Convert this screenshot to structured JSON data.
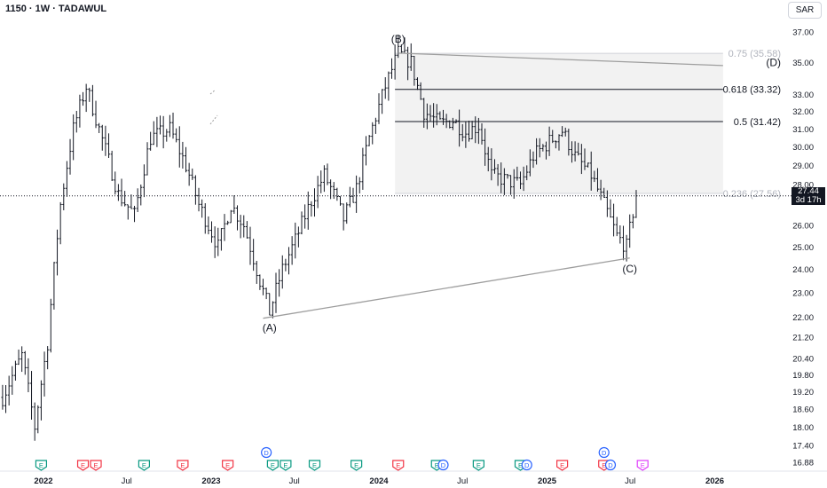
{
  "header": {
    "symbol": "1150 · 1W · TADAWUL",
    "currency": "SAR"
  },
  "last_price": {
    "value": "27.44",
    "countdown": "3d 17h"
  },
  "colors": {
    "bar": "#131722",
    "trendline": "#9e9e9e",
    "fib_line": "#131722",
    "fib_faint": "#b2b5be",
    "fib_zone": "#f2f2f2",
    "earnings": "#089981",
    "earnings_alt": "#f23645",
    "dividend": "#2962ff",
    "split": "#e040fb"
  },
  "chart_data": {
    "type": "ohlc",
    "title": "",
    "timeframe": "1W",
    "exchange": "TADAWUL",
    "y_ticks": [
      16.88,
      17.4,
      18.0,
      18.6,
      19.2,
      19.8,
      20.4,
      21.2,
      22.0,
      23.0,
      24.0,
      25.0,
      26.0,
      28.0,
      29.0,
      30.0,
      31.0,
      32.0,
      33.0,
      35.0,
      37.0
    ],
    "ylim": [
      16.88,
      37.0
    ],
    "y_scale": "log",
    "x_ticks": [
      {
        "label": "2022",
        "date": "2022-01-01"
      },
      {
        "label": "Jul",
        "date": "2022-07-01"
      },
      {
        "label": "2023",
        "date": "2023-01-01"
      },
      {
        "label": "Jul",
        "date": "2023-07-01"
      },
      {
        "label": "2024",
        "date": "2024-01-01"
      },
      {
        "label": "Jul",
        "date": "2024-07-01"
      },
      {
        "label": "2025",
        "date": "2025-01-01"
      },
      {
        "label": "Jul",
        "date": "2025-07-01"
      },
      {
        "label": "2026",
        "date": "2026-01-01"
      }
    ],
    "price_path": [
      [
        "2021-10-04",
        19.0
      ],
      [
        "2021-11-15",
        20.5
      ],
      [
        "2021-12-13",
        18.0
      ],
      [
        "2022-01-10",
        21.0
      ],
      [
        "2022-02-07",
        27.0
      ],
      [
        "2022-03-07",
        31.0
      ],
      [
        "2022-04-04",
        33.5
      ],
      [
        "2022-05-02",
        31.0
      ],
      [
        "2022-06-13",
        27.5
      ],
      [
        "2022-07-18",
        26.5
      ],
      [
        "2022-08-22",
        30.5
      ],
      [
        "2022-10-03",
        31.0
      ],
      [
        "2022-11-07",
        29.0
      ],
      [
        "2022-12-05",
        27.0
      ],
      [
        "2023-01-16",
        25.0
      ],
      [
        "2023-02-13",
        27.0
      ],
      [
        "2023-03-13",
        26.0
      ],
      [
        "2023-04-17",
        23.5
      ],
      [
        "2023-05-08",
        22.2
      ],
      [
        "2023-06-05",
        24.0
      ],
      [
        "2023-07-03",
        25.3
      ],
      [
        "2023-08-07",
        27.2
      ],
      [
        "2023-09-04",
        28.5
      ],
      [
        "2023-09-25",
        27.5
      ],
      [
        "2023-10-16",
        26.3
      ],
      [
        "2023-11-13",
        27.8
      ],
      [
        "2023-12-11",
        30.5
      ],
      [
        "2024-01-15",
        33.5
      ],
      [
        "2024-02-12",
        35.6
      ],
      [
        "2024-03-11",
        35.0
      ],
      [
        "2024-04-08",
        32.0
      ],
      [
        "2024-05-13",
        31.3
      ],
      [
        "2024-06-10",
        31.5
      ],
      [
        "2024-07-08",
        30.8
      ],
      [
        "2024-08-05",
        31.2
      ],
      [
        "2024-09-02",
        28.5
      ],
      [
        "2024-10-07",
        28.2
      ],
      [
        "2024-11-04",
        28.0
      ],
      [
        "2024-12-02",
        29.5
      ],
      [
        "2025-01-06",
        30.3
      ],
      [
        "2025-02-03",
        30.9
      ],
      [
        "2025-03-03",
        29.5
      ],
      [
        "2025-04-07",
        28.5
      ],
      [
        "2025-05-05",
        27.0
      ],
      [
        "2025-06-02",
        25.5
      ],
      [
        "2025-06-23",
        25.0
      ],
      [
        "2025-07-14",
        27.44
      ]
    ],
    "wave_labels": [
      {
        "text": "(A)",
        "date": "2023-05-08",
        "price": 22.0,
        "pos": "below"
      },
      {
        "text": "(B)",
        "date": "2024-02-12",
        "price": 35.6,
        "pos": "above"
      },
      {
        "text": "(C)",
        "date": "2025-06-30",
        "price": 24.5,
        "pos": "below"
      },
      {
        "text": "(D)",
        "date": "2025-12-29",
        "price": 35.0,
        "pos": "right"
      }
    ],
    "trendlines": [
      {
        "from": {
          "date": "2023-04-24",
          "price": 21.95
        },
        "to": {
          "date": "2025-06-30",
          "price": 24.5
        }
      },
      {
        "from": {
          "date": "2024-02-12",
          "price": 35.6
        },
        "to": {
          "date": "2026-01-19",
          "price": 34.8
        }
      }
    ],
    "fib_levels": [
      {
        "label": "0.75 (35.58)",
        "price": 35.58,
        "faint": true
      },
      {
        "label": "0.618 (33.32)",
        "price": 33.32,
        "faint": false
      },
      {
        "label": "0.5 (31.42)",
        "price": 31.42,
        "faint": false
      },
      {
        "label": "0.236 (27.56)",
        "price": 27.56,
        "faint": true
      }
    ],
    "fib_start_date": "2024-02-05",
    "fib_end_date": "2026-01-19",
    "events": [
      {
        "date": "2021-12-27",
        "type": "E",
        "color": "green"
      },
      {
        "date": "2022-03-28",
        "type": "E",
        "color": "red"
      },
      {
        "date": "2022-04-25",
        "type": "E",
        "color": "red"
      },
      {
        "date": "2022-08-08",
        "type": "E",
        "color": "green"
      },
      {
        "date": "2022-10-31",
        "type": "E",
        "color": "red"
      },
      {
        "date": "2023-02-06",
        "type": "E",
        "color": "red"
      },
      {
        "date": "2023-05-15",
        "type": "E",
        "color": "green"
      },
      {
        "date": "2023-05-01",
        "type": "D",
        "color": "blue",
        "row": "upper"
      },
      {
        "date": "2023-06-12",
        "type": "E",
        "color": "green"
      },
      {
        "date": "2023-08-14",
        "type": "E",
        "color": "green"
      },
      {
        "date": "2023-11-13",
        "type": "E",
        "color": "green"
      },
      {
        "date": "2024-02-12",
        "type": "E",
        "color": "red"
      },
      {
        "date": "2024-05-06",
        "type": "E",
        "color": "green"
      },
      {
        "date": "2024-05-20",
        "type": "D",
        "color": "blue"
      },
      {
        "date": "2024-08-05",
        "type": "E",
        "color": "green"
      },
      {
        "date": "2024-11-04",
        "type": "E",
        "color": "green"
      },
      {
        "date": "2024-11-18",
        "type": "D",
        "color": "blue"
      },
      {
        "date": "2025-02-03",
        "type": "E",
        "color": "red"
      },
      {
        "date": "2025-05-05",
        "type": "E",
        "color": "red"
      },
      {
        "date": "2025-05-19",
        "type": "D",
        "color": "blue"
      },
      {
        "date": "2025-05-05",
        "type": "D",
        "color": "blue",
        "row": "upper"
      },
      {
        "date": "2025-07-28",
        "type": "E",
        "color": "split"
      }
    ]
  }
}
